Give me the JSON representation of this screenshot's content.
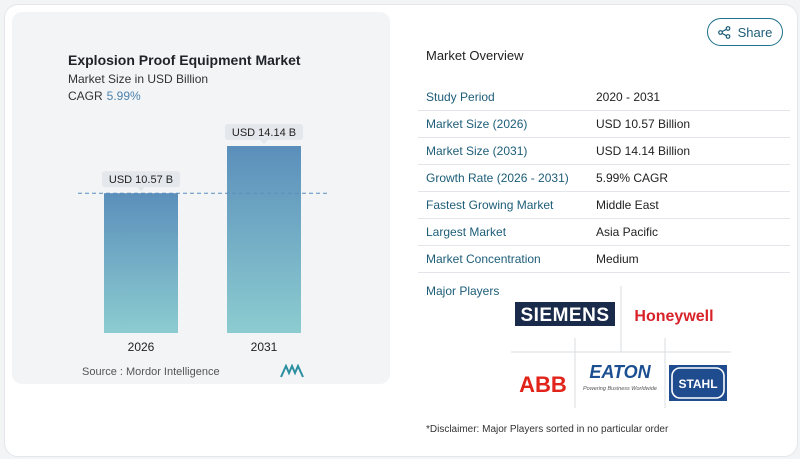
{
  "chart": {
    "title": "Explosion Proof Equipment Market",
    "subtitle": "Market Size in USD Billion",
    "cagr_label": "CAGR",
    "cagr_value": "5.99%",
    "source": "Source :  Mordor Intelligence"
  },
  "chart_data": {
    "type": "bar",
    "title": "Explosion Proof Equipment Market",
    "subtitle": "Market Size in USD Billion",
    "categories": [
      "2026",
      "2031"
    ],
    "values": [
      10.57,
      14.14
    ],
    "data_labels": [
      "USD 10.57 B",
      "USD 14.14 B"
    ],
    "xlabel": "",
    "ylabel": "",
    "ylim": [
      0,
      14.14
    ],
    "grid": false,
    "colors": [
      "#5b8fbb",
      "#8cccd0"
    ]
  },
  "share": {
    "label": "Share",
    "icon": "share-icon"
  },
  "overview": {
    "title": "Market Overview",
    "rows": [
      {
        "label": "Study Period",
        "value": "2020 - 2031"
      },
      {
        "label": "Market Size (2026)",
        "value": "USD 10.57 Billion"
      },
      {
        "label": "Market Size (2031)",
        "value": "USD 14.14 Billion"
      },
      {
        "label": "Growth Rate (2026 - 2031)",
        "value": "5.99% CAGR"
      },
      {
        "label": "Fastest Growing Market",
        "value": "Middle East"
      },
      {
        "label": "Largest Market",
        "value": "Asia Pacific"
      },
      {
        "label": "Market Concentration",
        "value": "Medium"
      }
    ]
  },
  "players": {
    "title": "Major Players",
    "logos": [
      {
        "name": "SIEMENS",
        "color": "#1a2a4a"
      },
      {
        "name": "Honeywell",
        "color": "#d8232a"
      },
      {
        "name": "ABB",
        "color": "#e2231a"
      },
      {
        "name": "EATON",
        "tagline": "Powering Business Worldwide",
        "color": "#1b4f91"
      },
      {
        "name": "STAHL",
        "color": "#1f4b8f"
      }
    ]
  },
  "disclaimer": "*Disclaimer: Major Players sorted in no particular order"
}
